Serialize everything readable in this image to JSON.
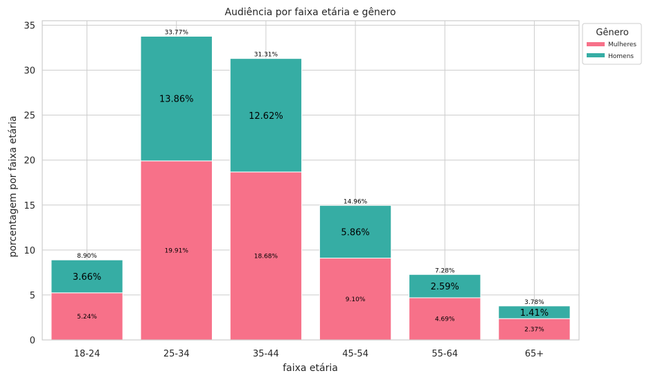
{
  "chart_data": {
    "type": "bar",
    "stacked": true,
    "title": "Audiência por faixa etária e gênero",
    "xlabel": "faixa etária",
    "ylabel": "porcentagem por faixa etária",
    "categories": [
      "18-24",
      "25-34",
      "35-44",
      "45-54",
      "55-64",
      "65+"
    ],
    "series": [
      {
        "name": "Mulheres",
        "color": "#f77189",
        "values": [
          5.24,
          19.91,
          18.68,
          9.1,
          4.69,
          2.37
        ],
        "labels": [
          "5.24%",
          "19.91%",
          "18.68%",
          "9.10%",
          "4.69%",
          "2.37%"
        ]
      },
      {
        "name": "Homens",
        "color": "#36ada4",
        "values": [
          3.66,
          13.86,
          12.62,
          5.86,
          2.59,
          1.41
        ],
        "labels": [
          "3.66%",
          "13.86%",
          "12.62%",
          "5.86%",
          "2.59%",
          "1.41%"
        ]
      }
    ],
    "totals": [
      8.9,
      33.77,
      31.31,
      14.96,
      7.28,
      3.78
    ],
    "total_labels": [
      "8.90%",
      "33.77%",
      "31.31%",
      "14.96%",
      "7.28%",
      "3.78%"
    ],
    "ylim": [
      0,
      35.5
    ],
    "yticks": [
      0,
      5,
      10,
      15,
      20,
      25,
      30,
      35
    ],
    "grid": true,
    "legend": {
      "title": "Gênero",
      "placement": "outside-top-right"
    }
  }
}
